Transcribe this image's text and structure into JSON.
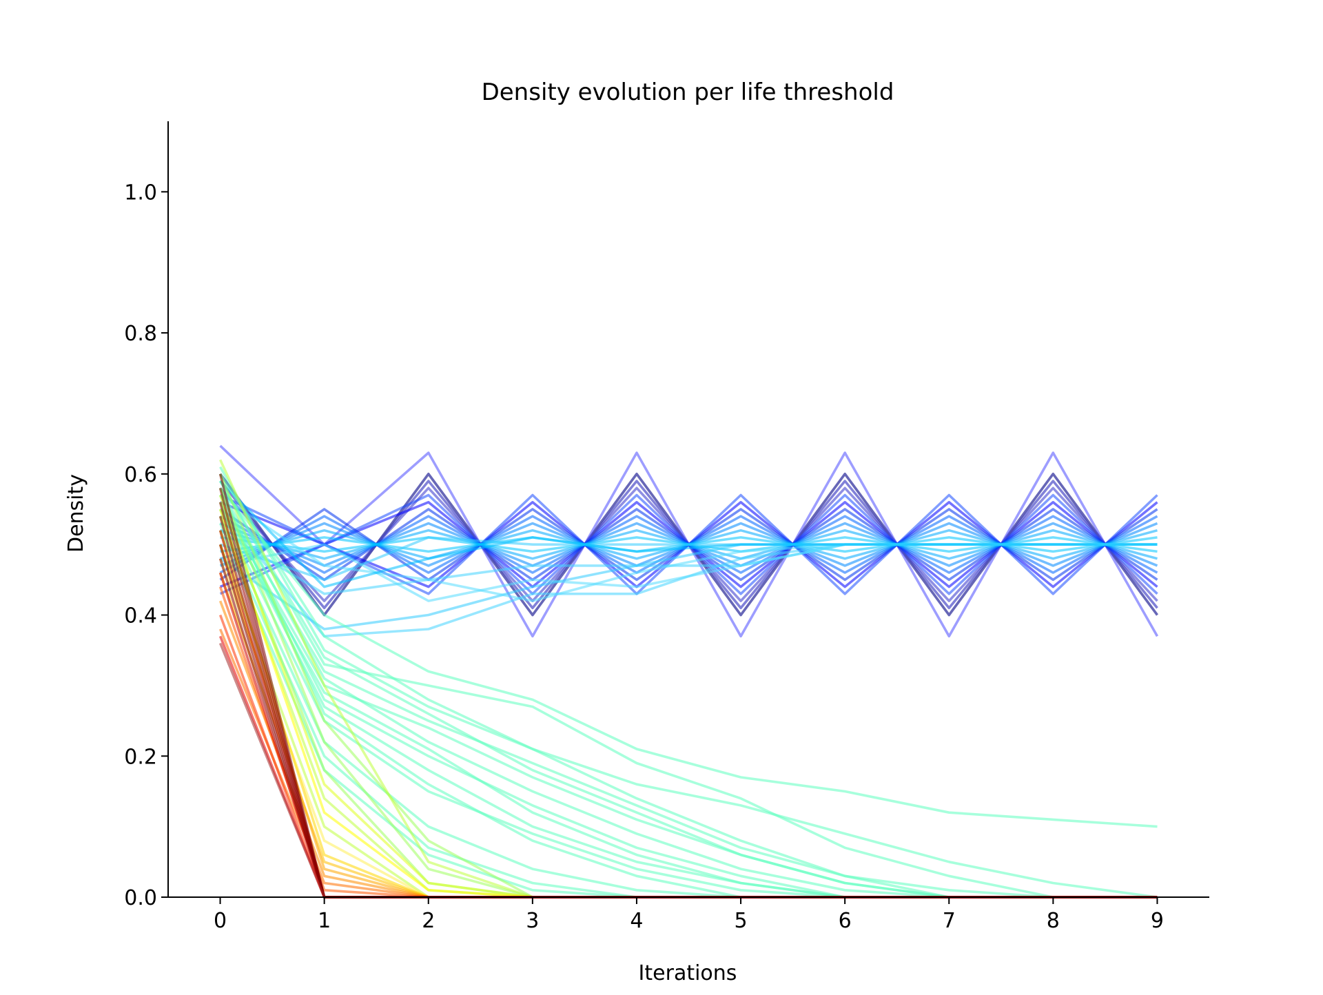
{
  "chart_data": {
    "type": "line",
    "title": "Density evolution per life threshold",
    "xlabel": "Iterations",
    "ylabel": "Density",
    "xlim": [
      -0.5,
      9.5
    ],
    "ylim": [
      0.0,
      1.1
    ],
    "xticks": [
      "0",
      "1",
      "2",
      "3",
      "4",
      "5",
      "6",
      "7",
      "8",
      "9"
    ],
    "yticks": [
      "0.0",
      "0.2",
      "0.4",
      "0.6",
      "0.8",
      "1.0"
    ],
    "grid": false,
    "legend": "none",
    "x": [
      0,
      1,
      2,
      3,
      4,
      5,
      6,
      7,
      8,
      9
    ],
    "series": [
      {
        "color": "#00008b",
        "values": [
          0.6,
          0.4,
          0.6,
          0.4,
          0.6,
          0.4,
          0.6,
          0.4,
          0.6,
          0.4
        ]
      },
      {
        "color": "#1a1ab8",
        "values": [
          0.59,
          0.41,
          0.59,
          0.41,
          0.59,
          0.41,
          0.59,
          0.41,
          0.59,
          0.41
        ]
      },
      {
        "color": "#3333cc",
        "values": [
          0.58,
          0.42,
          0.58,
          0.42,
          0.58,
          0.42,
          0.58,
          0.42,
          0.58,
          0.42
        ]
      },
      {
        "color": "#5c5cb0",
        "values": [
          0.6,
          0.4,
          0.6,
          0.4,
          0.6,
          0.4,
          0.6,
          0.4,
          0.6,
          0.4
        ]
      },
      {
        "color": "#4d4dff",
        "values": [
          0.64,
          0.5,
          0.63,
          0.37,
          0.63,
          0.37,
          0.63,
          0.37,
          0.63,
          0.37
        ]
      },
      {
        "color": "#0000ff",
        "values": [
          0.56,
          0.5,
          0.56,
          0.44,
          0.56,
          0.44,
          0.56,
          0.44,
          0.56,
          0.44
        ]
      },
      {
        "color": "#0000ff",
        "values": [
          0.44,
          0.5,
          0.44,
          0.56,
          0.44,
          0.56,
          0.44,
          0.56,
          0.44,
          0.56
        ]
      },
      {
        "color": "#1a4dff",
        "values": [
          0.57,
          0.5,
          0.57,
          0.43,
          0.57,
          0.43,
          0.57,
          0.43,
          0.57,
          0.43
        ]
      },
      {
        "color": "#1a4dff",
        "values": [
          0.43,
          0.5,
          0.43,
          0.57,
          0.43,
          0.57,
          0.43,
          0.57,
          0.43,
          0.57
        ]
      },
      {
        "color": "#0033ee",
        "values": [
          0.55,
          0.45,
          0.55,
          0.45,
          0.55,
          0.45,
          0.55,
          0.45,
          0.55,
          0.45
        ]
      },
      {
        "color": "#0033ee",
        "values": [
          0.45,
          0.55,
          0.45,
          0.55,
          0.45,
          0.55,
          0.45,
          0.55,
          0.45,
          0.55
        ]
      },
      {
        "color": "#0066ff",
        "values": [
          0.54,
          0.46,
          0.54,
          0.46,
          0.54,
          0.46,
          0.54,
          0.46,
          0.54,
          0.46
        ]
      },
      {
        "color": "#0066ff",
        "values": [
          0.46,
          0.54,
          0.46,
          0.54,
          0.46,
          0.54,
          0.46,
          0.54,
          0.46,
          0.54
        ]
      },
      {
        "color": "#0088ff",
        "values": [
          0.53,
          0.47,
          0.53,
          0.47,
          0.53,
          0.47,
          0.53,
          0.47,
          0.53,
          0.47
        ]
      },
      {
        "color": "#0088ff",
        "values": [
          0.47,
          0.53,
          0.47,
          0.53,
          0.47,
          0.53,
          0.47,
          0.53,
          0.47,
          0.53
        ]
      },
      {
        "color": "#00aaff",
        "values": [
          0.52,
          0.48,
          0.52,
          0.48,
          0.52,
          0.48,
          0.52,
          0.48,
          0.52,
          0.48
        ]
      },
      {
        "color": "#00aaff",
        "values": [
          0.48,
          0.52,
          0.48,
          0.52,
          0.48,
          0.52,
          0.48,
          0.52,
          0.48,
          0.52
        ]
      },
      {
        "color": "#00c4ff",
        "values": [
          0.51,
          0.49,
          0.51,
          0.49,
          0.51,
          0.49,
          0.51,
          0.49,
          0.51,
          0.49
        ]
      },
      {
        "color": "#00c4ff",
        "values": [
          0.49,
          0.51,
          0.49,
          0.51,
          0.49,
          0.51,
          0.49,
          0.51,
          0.49,
          0.51
        ]
      },
      {
        "color": "#33ccff",
        "values": [
          0.5,
          0.45,
          0.51,
          0.5,
          0.5,
          0.5,
          0.5,
          0.5,
          0.5,
          0.5
        ]
      },
      {
        "color": "#33ccff",
        "values": [
          0.48,
          0.38,
          0.4,
          0.44,
          0.47,
          0.5,
          0.5,
          0.5,
          0.5,
          0.5
        ]
      },
      {
        "color": "#44d4ff",
        "values": [
          0.55,
          0.37,
          0.38,
          0.43,
          0.43,
          0.48,
          0.5,
          0.5,
          0.5,
          0.5
        ]
      },
      {
        "color": "#44d4ff",
        "values": [
          0.52,
          0.43,
          0.45,
          0.47,
          0.47,
          0.47,
          0.5,
          0.5,
          0.5,
          0.5
        ]
      },
      {
        "color": "#55ddff",
        "values": [
          0.57,
          0.47,
          0.45,
          0.42,
          0.46,
          0.49,
          0.5,
          0.5,
          0.5,
          0.5
        ]
      },
      {
        "color": "#55ddff",
        "values": [
          0.47,
          0.5,
          0.42,
          0.45,
          0.44,
          0.47,
          0.5,
          0.5,
          0.5,
          0.5
        ]
      },
      {
        "color": "#00bfff",
        "values": [
          0.59,
          0.44,
          0.48,
          0.51,
          0.49,
          0.5,
          0.5,
          0.5,
          0.5,
          0.5
        ]
      },
      {
        "color": "#5fffbf",
        "values": [
          0.61,
          0.35,
          0.27,
          0.21,
          0.16,
          0.13,
          0.09,
          0.05,
          0.02,
          0.0
        ]
      },
      {
        "color": "#5fffbf",
        "values": [
          0.58,
          0.4,
          0.32,
          0.28,
          0.21,
          0.17,
          0.15,
          0.12,
          0.11,
          0.1
        ]
      },
      {
        "color": "#5fffbf",
        "values": [
          0.59,
          0.33,
          0.3,
          0.27,
          0.19,
          0.14,
          0.07,
          0.03,
          0.0,
          0.0
        ]
      },
      {
        "color": "#5fffbf",
        "values": [
          0.56,
          0.3,
          0.24,
          0.17,
          0.11,
          0.06,
          0.02,
          0.0,
          0.0,
          0.0
        ]
      },
      {
        "color": "#5fffbf",
        "values": [
          0.6,
          0.37,
          0.28,
          0.21,
          0.14,
          0.08,
          0.03,
          0.0,
          0.0,
          0.0
        ]
      },
      {
        "color": "#5fffbf",
        "values": [
          0.57,
          0.28,
          0.2,
          0.13,
          0.07,
          0.03,
          0.0,
          0.0,
          0.0,
          0.0
        ]
      },
      {
        "color": "#5fffbf",
        "values": [
          0.55,
          0.25,
          0.15,
          0.09,
          0.04,
          0.01,
          0.0,
          0.0,
          0.0,
          0.0
        ]
      },
      {
        "color": "#5fffbf",
        "values": [
          0.58,
          0.31,
          0.22,
          0.15,
          0.09,
          0.04,
          0.01,
          0.0,
          0.0,
          0.0
        ]
      },
      {
        "color": "#5fffbf",
        "values": [
          0.54,
          0.22,
          0.1,
          0.04,
          0.01,
          0.0,
          0.0,
          0.0,
          0.0,
          0.0
        ]
      },
      {
        "color": "#5fffbf",
        "values": [
          0.56,
          0.27,
          0.18,
          0.1,
          0.05,
          0.02,
          0.0,
          0.0,
          0.0,
          0.0
        ]
      },
      {
        "color": "#5fffbf",
        "values": [
          0.53,
          0.2,
          0.07,
          0.02,
          0.0,
          0.0,
          0.0,
          0.0,
          0.0,
          0.0
        ]
      },
      {
        "color": "#5fffbf",
        "values": [
          0.59,
          0.34,
          0.26,
          0.18,
          0.12,
          0.06,
          0.02,
          0.0,
          0.0,
          0.0
        ]
      },
      {
        "color": "#5fffbf",
        "values": [
          0.55,
          0.29,
          0.21,
          0.12,
          0.06,
          0.02,
          0.0,
          0.0,
          0.0,
          0.0
        ]
      },
      {
        "color": "#5fffbf",
        "values": [
          0.57,
          0.32,
          0.25,
          0.19,
          0.13,
          0.07,
          0.03,
          0.01,
          0.0,
          0.0
        ]
      },
      {
        "color": "#5fffbf",
        "values": [
          0.52,
          0.18,
          0.06,
          0.01,
          0.0,
          0.0,
          0.0,
          0.0,
          0.0,
          0.0
        ]
      },
      {
        "color": "#5fffbf",
        "values": [
          0.58,
          0.26,
          0.16,
          0.08,
          0.03,
          0.0,
          0.0,
          0.0,
          0.0,
          0.0
        ]
      },
      {
        "color": "#9fff5f",
        "values": [
          0.6,
          0.25,
          0.08,
          0.0,
          0.0,
          0.0,
          0.0,
          0.0,
          0.0,
          0.0
        ]
      },
      {
        "color": "#9fff5f",
        "values": [
          0.58,
          0.22,
          0.04,
          0.0,
          0.0,
          0.0,
          0.0,
          0.0,
          0.0,
          0.0
        ]
      },
      {
        "color": "#9fff5f",
        "values": [
          0.56,
          0.18,
          0.02,
          0.0,
          0.0,
          0.0,
          0.0,
          0.0,
          0.0,
          0.0
        ]
      },
      {
        "color": "#bfff3f",
        "values": [
          0.62,
          0.3,
          0.05,
          0.0,
          0.0,
          0.0,
          0.0,
          0.0,
          0.0,
          0.0
        ]
      },
      {
        "color": "#bfff3f",
        "values": [
          0.54,
          0.14,
          0.01,
          0.0,
          0.0,
          0.0,
          0.0,
          0.0,
          0.0,
          0.0
        ]
      },
      {
        "color": "#bfff3f",
        "values": [
          0.5,
          0.1,
          0.0,
          0.0,
          0.0,
          0.0,
          0.0,
          0.0,
          0.0,
          0.0
        ]
      },
      {
        "color": "#dfff1f",
        "values": [
          0.57,
          0.16,
          0.02,
          0.0,
          0.0,
          0.0,
          0.0,
          0.0,
          0.0,
          0.0
        ]
      },
      {
        "color": "#ffff00",
        "values": [
          0.55,
          0.12,
          0.01,
          0.0,
          0.0,
          0.0,
          0.0,
          0.0,
          0.0,
          0.0
        ]
      },
      {
        "color": "#ffee55",
        "values": [
          0.48,
          0.08,
          0.0,
          0.0,
          0.0,
          0.0,
          0.0,
          0.0,
          0.0,
          0.0
        ]
      },
      {
        "color": "#ffd700",
        "values": [
          0.52,
          0.06,
          0.0,
          0.0,
          0.0,
          0.0,
          0.0,
          0.0,
          0.0,
          0.0
        ]
      },
      {
        "color": "#ffc000",
        "values": [
          0.46,
          0.05,
          0.0,
          0.0,
          0.0,
          0.0,
          0.0,
          0.0,
          0.0,
          0.0
        ]
      },
      {
        "color": "#ffa500",
        "values": [
          0.5,
          0.04,
          0.0,
          0.0,
          0.0,
          0.0,
          0.0,
          0.0,
          0.0,
          0.0
        ]
      },
      {
        "color": "#ff8c00",
        "values": [
          0.42,
          0.03,
          0.0,
          0.0,
          0.0,
          0.0,
          0.0,
          0.0,
          0.0,
          0.0
        ]
      },
      {
        "color": "#ff7000",
        "values": [
          0.38,
          0.02,
          0.0,
          0.0,
          0.0,
          0.0,
          0.0,
          0.0,
          0.0,
          0.0
        ]
      },
      {
        "color": "#ff5500",
        "values": [
          0.44,
          0.01,
          0.0,
          0.0,
          0.0,
          0.0,
          0.0,
          0.0,
          0.0,
          0.0
        ]
      },
      {
        "color": "#ff3300",
        "values": [
          0.4,
          0.0,
          0.0,
          0.0,
          0.0,
          0.0,
          0.0,
          0.0,
          0.0,
          0.0
        ]
      },
      {
        "color": "#e60000",
        "values": [
          0.37,
          0.0,
          0.0,
          0.0,
          0.0,
          0.0,
          0.0,
          0.0,
          0.0,
          0.0
        ]
      },
      {
        "color": "#cc0000",
        "values": [
          0.46,
          0.0,
          0.0,
          0.0,
          0.0,
          0.0,
          0.0,
          0.0,
          0.0,
          0.0
        ]
      },
      {
        "color": "#b30000",
        "values": [
          0.52,
          0.0,
          0.0,
          0.0,
          0.0,
          0.0,
          0.0,
          0.0,
          0.0,
          0.0
        ]
      },
      {
        "color": "#990000",
        "values": [
          0.56,
          0.0,
          0.0,
          0.0,
          0.0,
          0.0,
          0.0,
          0.0,
          0.0,
          0.0
        ]
      },
      {
        "color": "#800000",
        "values": [
          0.6,
          0.0,
          0.0,
          0.0,
          0.0,
          0.0,
          0.0,
          0.0,
          0.0,
          0.0
        ]
      },
      {
        "color": "#8b0000",
        "values": [
          0.58,
          0.0,
          0.0,
          0.0,
          0.0,
          0.0,
          0.0,
          0.0,
          0.0,
          0.0
        ]
      },
      {
        "color": "#8b0000",
        "values": [
          0.54,
          0.0,
          0.0,
          0.0,
          0.0,
          0.0,
          0.0,
          0.0,
          0.0,
          0.0
        ]
      },
      {
        "color": "#8b0000",
        "values": [
          0.5,
          0.0,
          0.0,
          0.0,
          0.0,
          0.0,
          0.0,
          0.0,
          0.0,
          0.0
        ]
      },
      {
        "color": "#8b0000",
        "values": [
          0.48,
          0.0,
          0.0,
          0.0,
          0.0,
          0.0,
          0.0,
          0.0,
          0.0,
          0.0
        ]
      },
      {
        "color": "#a52a2a",
        "values": [
          0.36,
          0.0,
          0.0,
          0.0,
          0.0,
          0.0,
          0.0,
          0.0,
          0.0,
          0.0
        ]
      }
    ]
  }
}
